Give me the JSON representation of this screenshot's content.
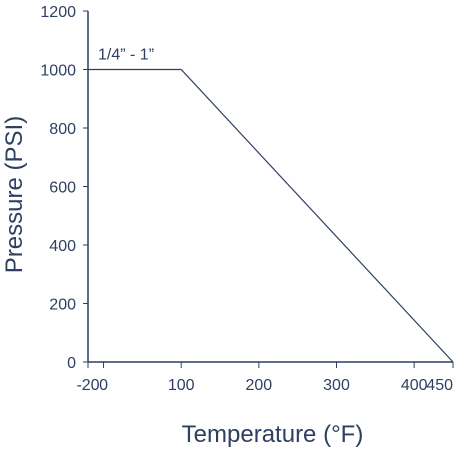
{
  "chart_data": {
    "type": "line",
    "xlabel": "Temperature (°F)",
    "ylabel": "Pressure (PSI)",
    "xlim": [
      -20,
      450
    ],
    "ylim": [
      0,
      1200
    ],
    "x_ticks": [
      -20,
      0,
      100,
      200,
      300,
      400,
      450
    ],
    "x_tick_labels": [
      "-20",
      "0",
      "100",
      "200",
      "300",
      "400",
      "450"
    ],
    "y_ticks": [
      0,
      200,
      400,
      600,
      800,
      1000,
      1200
    ],
    "y_tick_labels": [
      "0",
      "200",
      "400",
      "600",
      "800",
      "1000",
      "1200"
    ],
    "series": [
      {
        "name": "1/4” - 1”",
        "x": [
          -20,
          100,
          450
        ],
        "y": [
          1000,
          1000,
          0
        ]
      }
    ],
    "annotations": [
      {
        "text": "1/4” - 1”"
      }
    ],
    "grid": false,
    "colors": {
      "line": "#2e3f62",
      "text": "#2e3f62"
    }
  }
}
